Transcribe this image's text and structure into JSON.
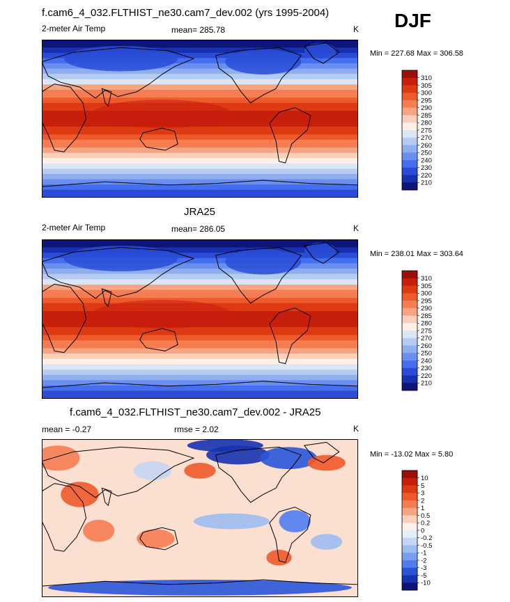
{
  "season": "DJF",
  "panels": [
    {
      "title": "f.cam6_4_032.FLTHIST_ne30.cam7_dev.002 (yrs 1995-2004)",
      "left_label": "2-meter Air Temp",
      "center_label": "mean= 285.78",
      "units": "K",
      "minmax": "Min = 227.68 Max = 306.58",
      "colorbar": [
        "310",
        "305",
        "300",
        "295",
        "290",
        "285",
        "280",
        "275",
        "270",
        "260",
        "250",
        "240",
        "230",
        "220",
        "210"
      ],
      "colors": [
        "#9a0f09",
        "#c81e0c",
        "#dd3a14",
        "#ee5a2a",
        "#f57d52",
        "#f6a583",
        "#fad0bb",
        "#fdf0e6",
        "#dbe6f6",
        "#b5cbf0",
        "#8eaef0",
        "#6a8ff0",
        "#456ef0",
        "#2a4dd8",
        "#1730b0",
        "#0d1678"
      ],
      "kind": "model"
    },
    {
      "title": "JRA25",
      "left_label": "2-meter Air Temp",
      "center_label": "mean= 286.05",
      "units": "K",
      "minmax": "Min = 238.01 Max = 303.64",
      "colorbar": [
        "310",
        "305",
        "300",
        "295",
        "290",
        "285",
        "280",
        "275",
        "270",
        "260",
        "250",
        "240",
        "230",
        "220",
        "210"
      ],
      "colors": [
        "#9a0f09",
        "#c81e0c",
        "#dd3a14",
        "#ee5a2a",
        "#f57d52",
        "#f6a583",
        "#fad0bb",
        "#fdf0e6",
        "#dbe6f6",
        "#b5cbf0",
        "#8eaef0",
        "#6a8ff0",
        "#456ef0",
        "#2a4dd8",
        "#1730b0",
        "#0d1678"
      ],
      "kind": "obs"
    },
    {
      "title": "f.cam6_4_032.FLTHIST_ne30.cam7_dev.002 - JRA25",
      "left_label": "mean =  -0.27",
      "center_label": "rmse =   2.02",
      "units": "K",
      "minmax": "Min = -13.02 Max =   5.80",
      "colorbar": [
        "10",
        "5",
        "3",
        "2",
        "1",
        "0.5",
        "0.2",
        "0",
        "-0.2",
        "-0.5",
        "-1",
        "-2",
        "-3",
        "-5",
        "-10"
      ],
      "colors": [
        "#9a0f09",
        "#c81e0c",
        "#dd3a14",
        "#ee5a2a",
        "#f57d52",
        "#f6a583",
        "#fad0bb",
        "#fdf0e6",
        "#e6eefa",
        "#c5d6f4",
        "#9ebcf0",
        "#779ef0",
        "#4f7df0",
        "#2a55d8",
        "#1733b0",
        "#0d1678"
      ],
      "kind": "diff"
    }
  ]
}
